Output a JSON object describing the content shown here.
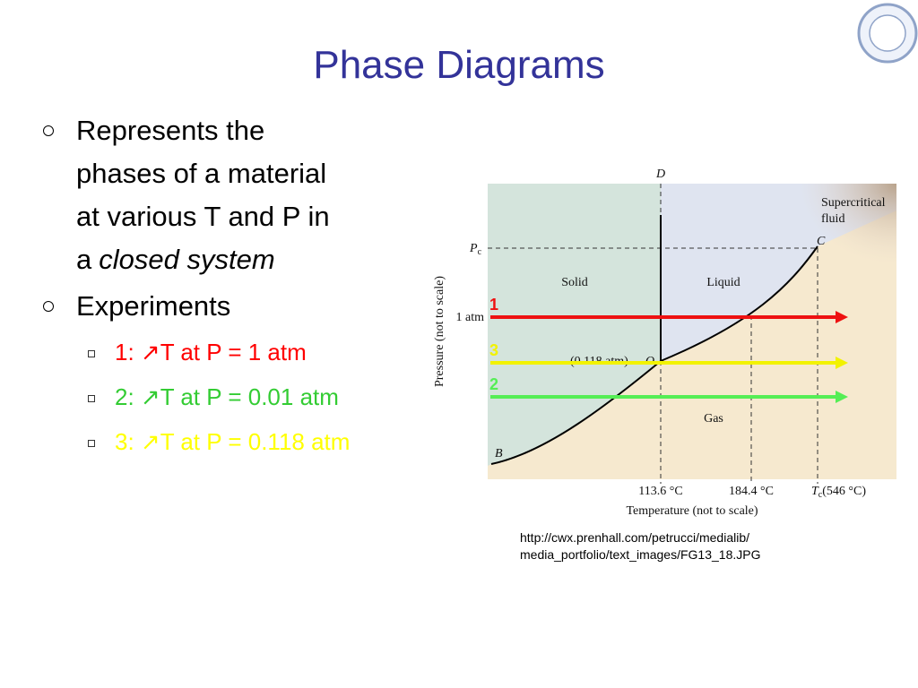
{
  "slide": {
    "title": "Phase Diagrams",
    "bullets": [
      {
        "lines": [
          "Represents the",
          "phases of a material",
          "at various T and P in"
        ],
        "last_line": {
          "text": "a",
          "emphasis": "closed system"
        }
      },
      {
        "text": "Experiments",
        "sub_bullets": [
          {
            "text": "1: ↗T at P = 1 atm",
            "color": "#ff0000"
          },
          {
            "text": "2: ↗T at P = 0.01 atm",
            "color": "#33cc33"
          },
          {
            "text": "3: ↗T at P = 0.118 atm",
            "color": "#ffff00"
          }
        ]
      }
    ],
    "diagram": {
      "point_d": "D",
      "supercritical": [
        "Supercritical",
        "fluid"
      ],
      "point_c": "C",
      "pc": {
        "symbol": "P",
        "subscript": "c"
      },
      "solid": "Solid",
      "liquid": "Liquid",
      "gas": "Gas",
      "one_atm": "1 atm",
      "triple_pressure": "(0.118 atm)",
      "point_o": "O",
      "point_b": "B",
      "x_labels": [
        "113.6 °C",
        "184.4 °C"
      ],
      "tc": {
        "symbol": "T",
        "subscript": "c",
        "value": "(546 °C)"
      },
      "x_axis_label": "Temperature (not to scale)",
      "y_axis_label": "Pressure (not to scale)",
      "arrows": [
        {
          "label": "1",
          "color": "#ee1111"
        },
        {
          "label": "3",
          "color": "#f2f200"
        },
        {
          "label": "2",
          "color": "#55ee55"
        }
      ]
    },
    "source": [
      "http://cwx.prenhall.com/petrucci/medialib/",
      "media_portfolio/text_images/FG13_18.JPG"
    ]
  }
}
